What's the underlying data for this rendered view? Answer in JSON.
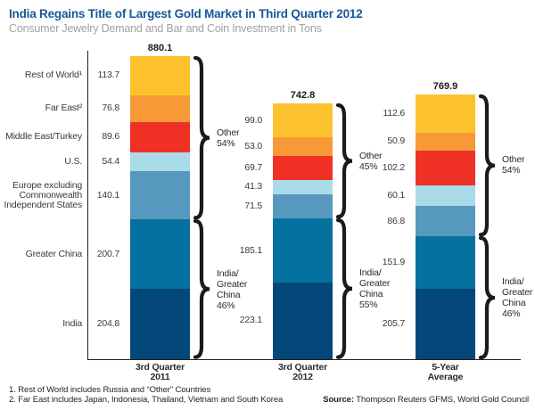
{
  "header": {
    "title": "India Regains Title of Largest Gold Market in Third Quarter 2012",
    "subtitle": "Consumer Jewelry Demand and Bar and Coin Investment in Tons"
  },
  "chart_data": {
    "type": "bar",
    "stacked": true,
    "unit": "tons",
    "title": "India Regains Title of Largest Gold Market in Third Quarter 2012",
    "subtitle": "Consumer Jewelry Demand and Bar and Coin Investment in Tons",
    "categories": [
      "Rest of World¹",
      "Far East²",
      "Middle East/Turkey",
      "U.S.",
      "Europe excluding Commonwealth Independent States",
      "Greater China",
      "India"
    ],
    "category_display_lines": [
      [
        "Rest of World¹"
      ],
      [
        "Far East²"
      ],
      [
        "Middle East/Turkey"
      ],
      [
        "U.S."
      ],
      [
        "Europe excluding",
        "Commonwealth",
        "Independent States"
      ],
      [
        "Greater China"
      ],
      [
        "India"
      ]
    ],
    "colors": [
      "#FCC22D",
      "#F79937",
      "#EE3124",
      "#AADBE8",
      "#5799BE",
      "#04719F",
      "#034879"
    ],
    "columns": [
      {
        "label_lines": [
          "3rd Quarter",
          "2011"
        ],
        "total": 880.1,
        "values": [
          113.7,
          76.8,
          89.6,
          54.4,
          140.1,
          200.7,
          204.8
        ],
        "braces": [
          {
            "from": 0,
            "to": 4,
            "label_lines": [
              "Other",
              "54%"
            ]
          },
          {
            "from": 5,
            "to": 6,
            "label_lines": [
              "India/",
              "Greater",
              "China",
              "46%"
            ]
          }
        ]
      },
      {
        "label_lines": [
          "3rd Quarter",
          "2012"
        ],
        "total": 742.8,
        "values": [
          99.0,
          53.0,
          69.7,
          41.3,
          71.5,
          185.1,
          223.1
        ],
        "braces": [
          {
            "from": 0,
            "to": 4,
            "label_lines": [
              "Other",
              "45%"
            ]
          },
          {
            "from": 5,
            "to": 6,
            "label_lines": [
              "India/",
              "Greater",
              "China",
              "55%"
            ]
          }
        ]
      },
      {
        "label_lines": [
          "5-Year",
          "Average"
        ],
        "total": 769.9,
        "values": [
          112.6,
          50.9,
          102.2,
          60.1,
          86.8,
          151.9,
          205.7
        ],
        "braces": [
          {
            "from": 0,
            "to": 4,
            "label_lines": [
              "Other",
              "54%"
            ]
          },
          {
            "from": 5,
            "to": 6,
            "label_lines": [
              "India/",
              "Greater",
              "China",
              "46%"
            ]
          }
        ]
      }
    ]
  },
  "footer": {
    "footnotes": [
      "1. Rest of World includes Russia and “Other” Countries",
      "2. Far East includes Japan, Indonesia, Thailand, Vietnam and South Korea"
    ],
    "source_label": "Source:",
    "source_text": " Thompson Reuters GFMS, World Gold Council"
  }
}
